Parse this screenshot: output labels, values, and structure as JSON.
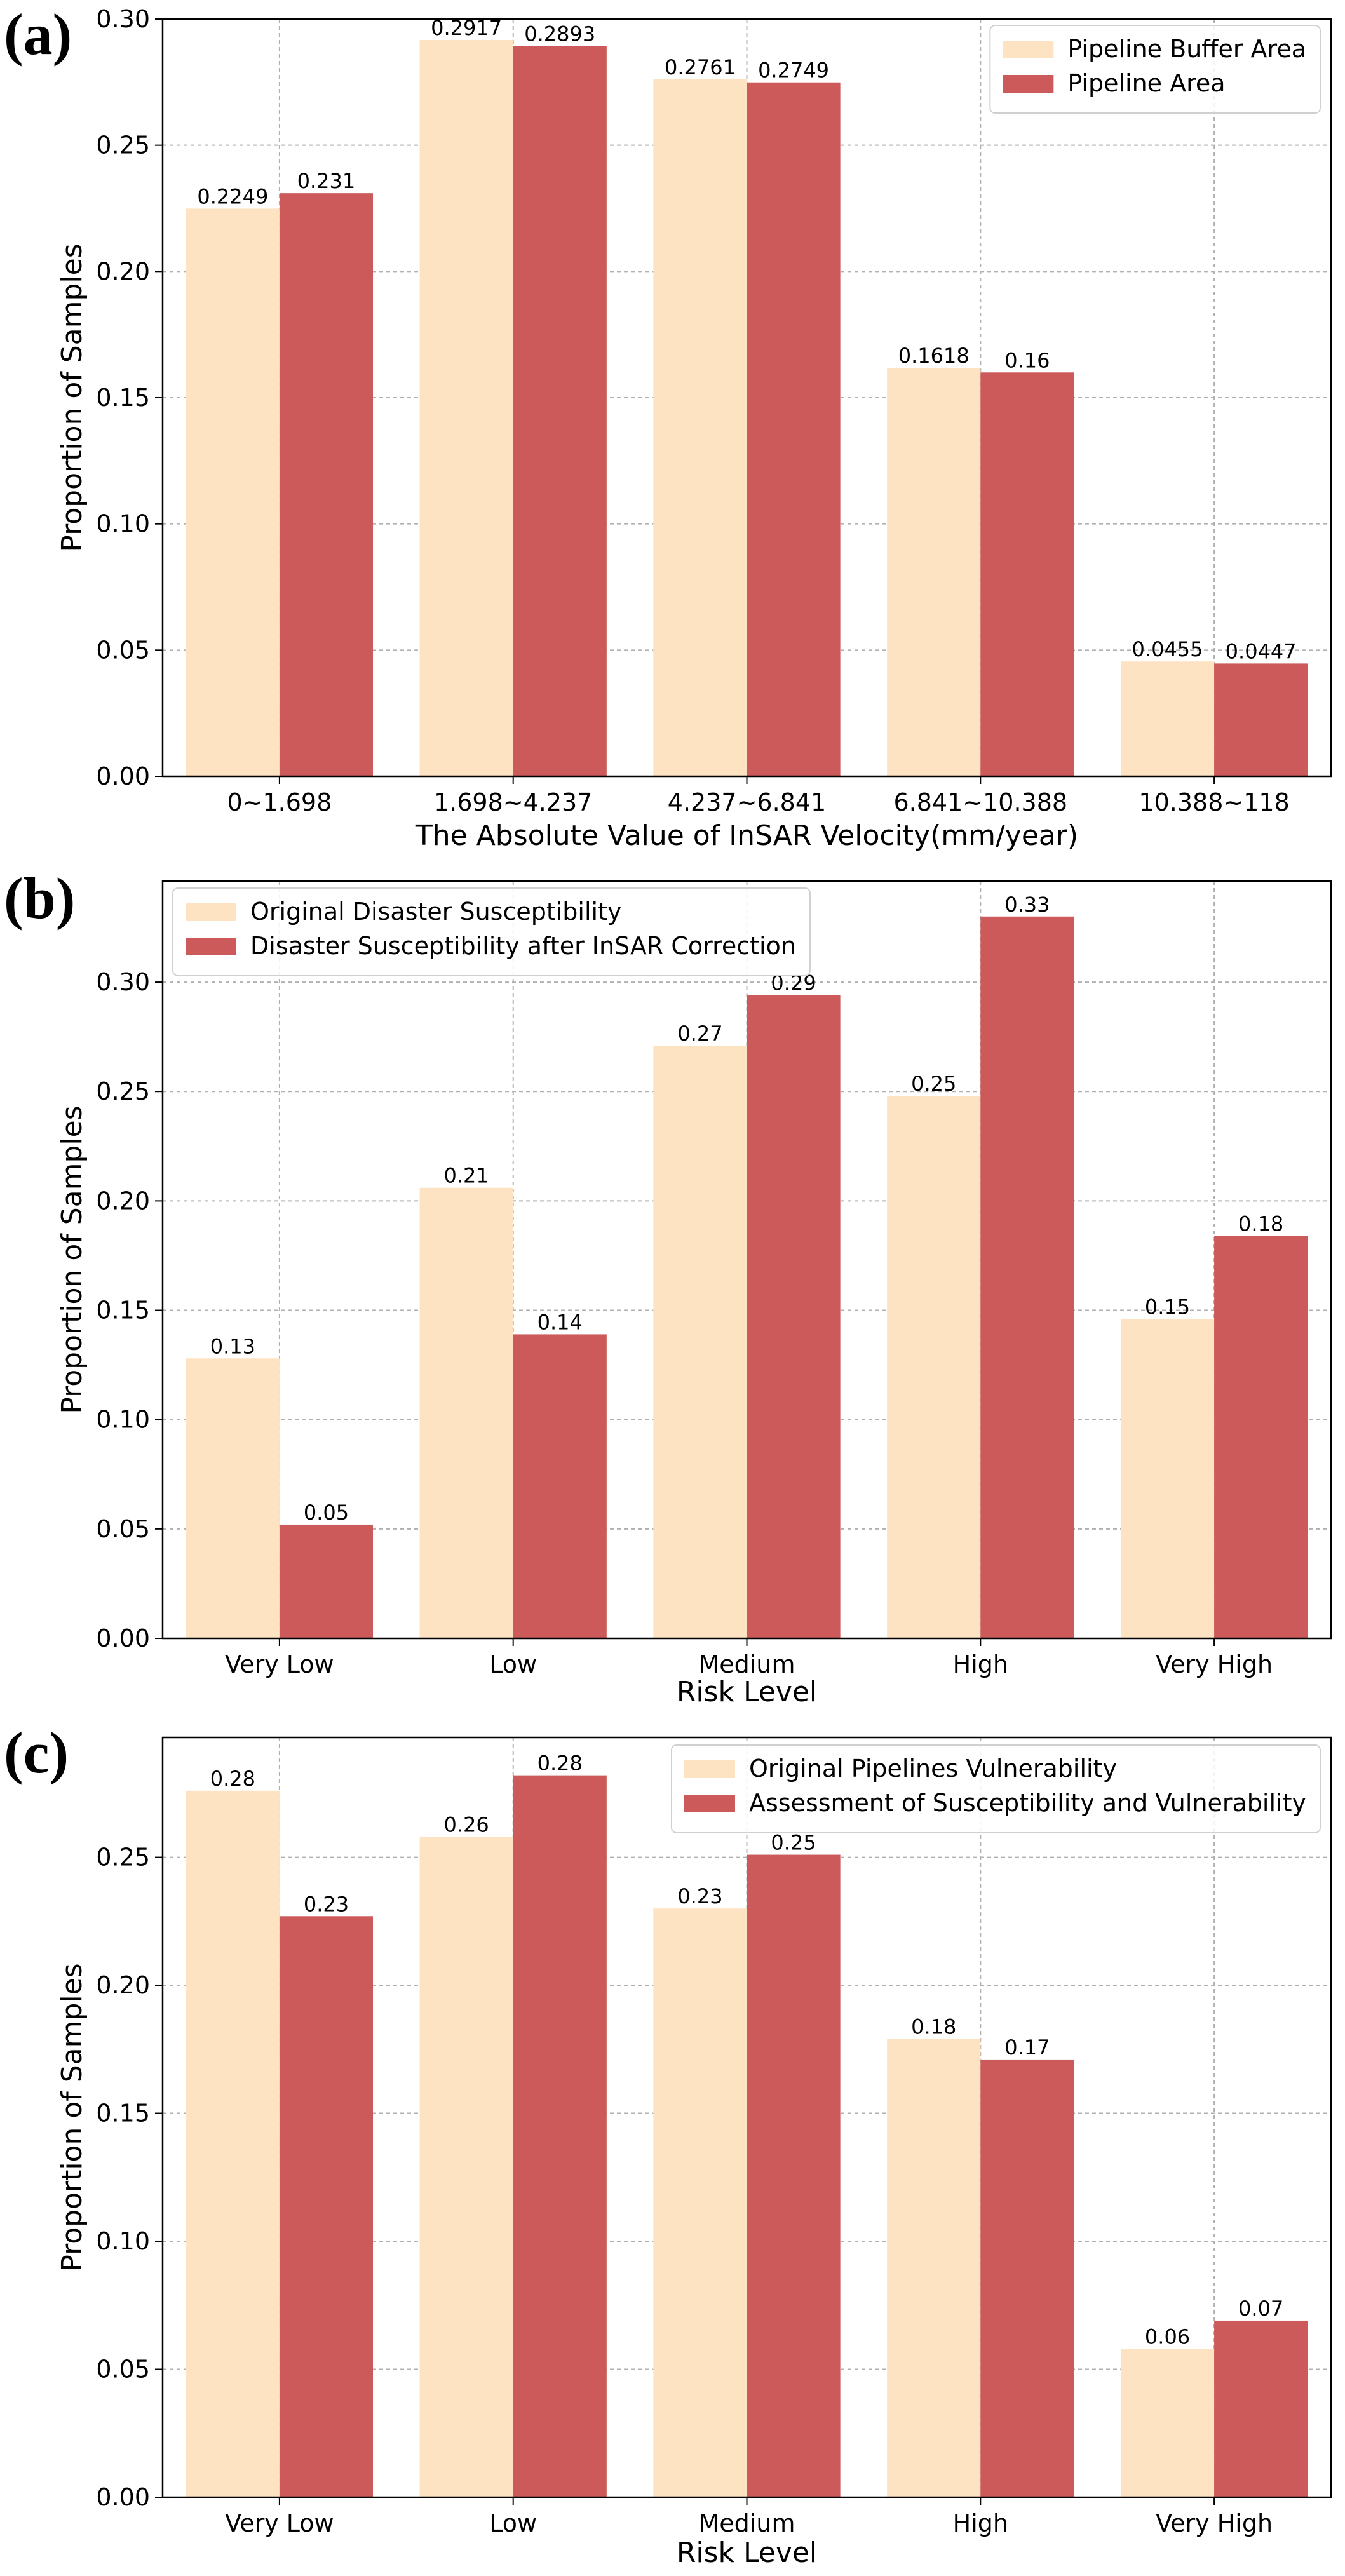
{
  "chart_data": [
    {
      "panel_label": "(a)",
      "type": "bar",
      "categories": [
        "0~1.698",
        "1.698~4.237",
        "4.237~6.841",
        "6.841~10.388",
        "10.388~118"
      ],
      "series": [
        {
          "name": "Pipeline Buffer Area",
          "color": "#fde3c1",
          "values": [
            0.2249,
            0.2917,
            0.2761,
            0.1618,
            0.0455
          ],
          "labels": [
            "0.2249",
            "0.2917",
            "0.2761",
            "0.1618",
            "0.0455"
          ]
        },
        {
          "name": "Pipeline Area",
          "color": "#cc5a5a",
          "values": [
            0.231,
            0.2893,
            0.2749,
            0.16,
            0.0447
          ],
          "labels": [
            "0.231",
            "0.2893",
            "0.2749",
            "0.16",
            "0.0447"
          ]
        }
      ],
      "yticks": [
        "0.00",
        "0.05",
        "0.10",
        "0.15",
        "0.20",
        "0.25",
        "0.30"
      ],
      "ylim": [
        0,
        0.3
      ],
      "xlabel": "The Absolute Value of InSAR Velocity(mm/year)",
      "ylabel": "Proportion of Samples",
      "legend_position": "top-right",
      "grid": true
    },
    {
      "panel_label": "(b)",
      "type": "bar",
      "categories": [
        "Very Low",
        "Low",
        "Medium",
        "High",
        "Very High"
      ],
      "series": [
        {
          "name": "Original Disaster Susceptibility",
          "color": "#fde3c1",
          "values": [
            0.128,
            0.206,
            0.271,
            0.248,
            0.146
          ],
          "labels": [
            "0.13",
            "0.21",
            "0.27",
            "0.25",
            "0.15"
          ]
        },
        {
          "name": "Disaster Susceptibility after InSAR Correction",
          "color": "#cc5a5a",
          "values": [
            0.052,
            0.139,
            0.294,
            0.33,
            0.184
          ],
          "labels": [
            "0.05",
            "0.14",
            "0.29",
            "0.33",
            "0.18"
          ]
        }
      ],
      "yticks": [
        "0.00",
        "0.05",
        "0.10",
        "0.15",
        "0.20",
        "0.25",
        "0.30"
      ],
      "ylim": [
        0,
        0.3462
      ],
      "xlabel": "Risk Level",
      "ylabel": "Proportion of Samples",
      "legend_position": "top-left",
      "grid": true
    },
    {
      "panel_label": "(c)",
      "type": "bar",
      "categories": [
        "Very Low",
        "Low",
        "Medium",
        "High",
        "Very High"
      ],
      "series": [
        {
          "name": "Original Pipelines Vulnerability",
          "color": "#fde3c1",
          "values": [
            0.276,
            0.258,
            0.23,
            0.179,
            0.058
          ],
          "labels": [
            "0.28",
            "0.26",
            "0.23",
            "0.18",
            "0.06"
          ]
        },
        {
          "name": "Assessment of Susceptibility and Vulnerability",
          "color": "#cc5a5a",
          "values": [
            0.227,
            0.282,
            0.251,
            0.171,
            0.069
          ],
          "labels": [
            "0.23",
            "0.28",
            "0.25",
            "0.17",
            "0.07"
          ]
        }
      ],
      "yticks": [
        "0.00",
        "0.05",
        "0.10",
        "0.15",
        "0.20",
        "0.25"
      ],
      "ylim": [
        0,
        0.2968
      ],
      "xlabel": "Risk Level",
      "ylabel": "Proportion of Samples",
      "legend_position": "top-right",
      "grid": true
    }
  ]
}
